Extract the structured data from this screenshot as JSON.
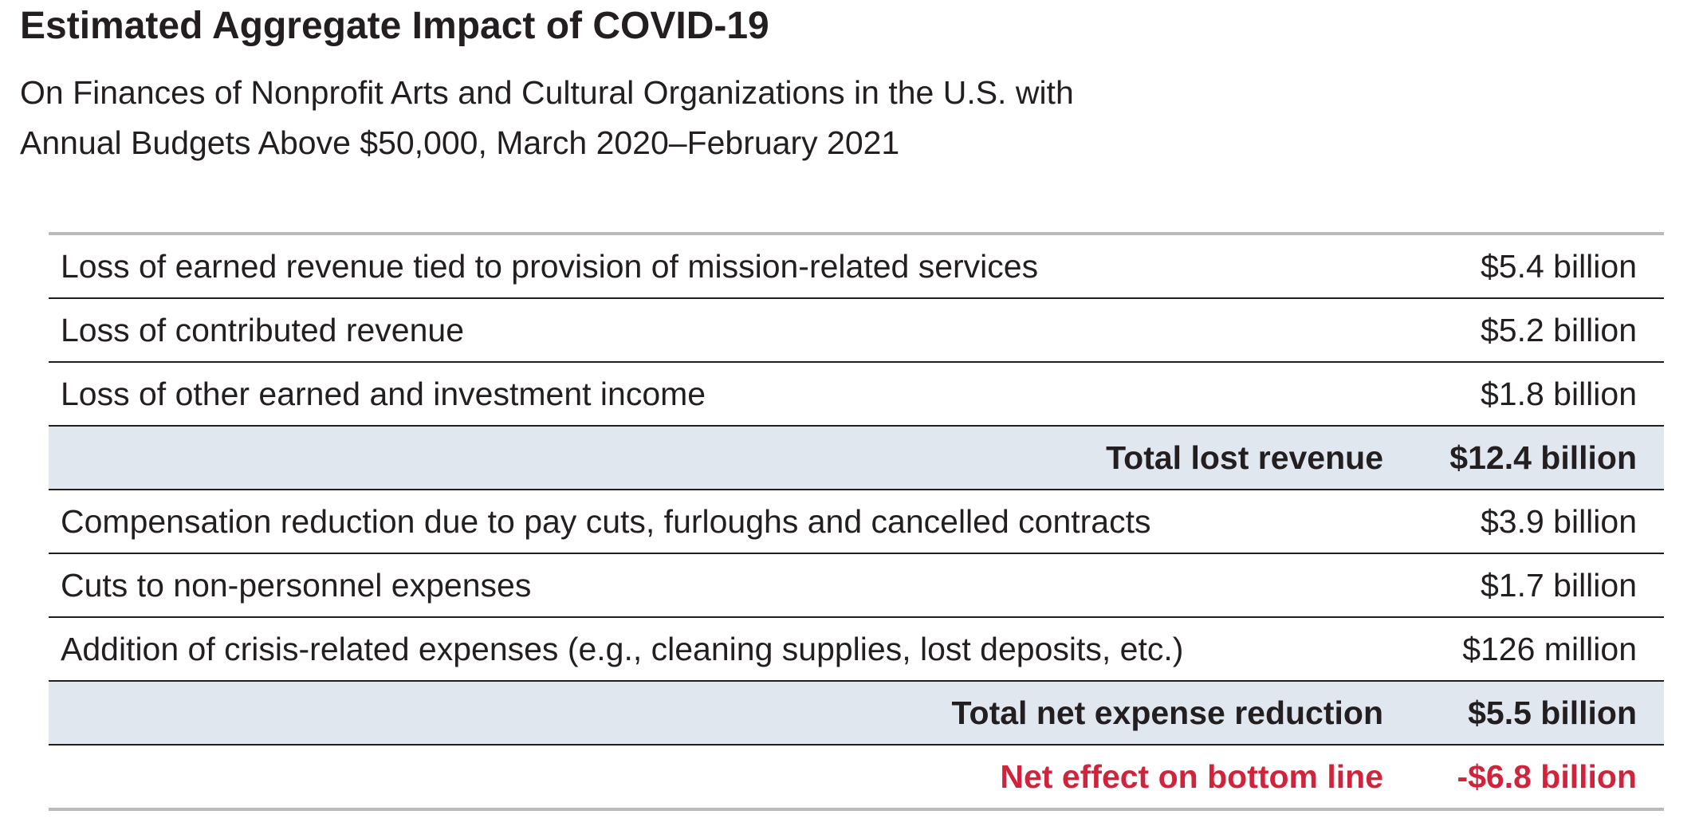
{
  "title": "Estimated Aggregate Impact of COVID-19",
  "subtitle": {
    "line1": "On Finances of Nonprofit Arts and Cultural Organizations in the U.S. with",
    "line2": "Annual Budgets Above $50,000, March 2020–February 2021"
  },
  "rows": [
    {
      "label": "Loss of earned revenue tied to provision of mission-related services",
      "value": "$5.4 billion"
    },
    {
      "label": "Loss of contributed revenue",
      "value": "$5.2 billion"
    },
    {
      "label": "Loss of other earned and investment income",
      "value": "$1.8 billion"
    },
    {
      "label": "Total lost revenue",
      "value": "$12.4 billion"
    },
    {
      "label": "Compensation reduction due to pay cuts, furloughs and cancelled contracts",
      "value": "$3.9 billion"
    },
    {
      "label": "Cuts to non-personnel expenses",
      "value": "$1.7 billion"
    },
    {
      "label": "Addition of crisis-related expenses (e.g., cleaning supplies, lost deposits, etc.)",
      "value": "$126 million"
    },
    {
      "label": "Total net expense reduction",
      "value": "$5.5 billion"
    },
    {
      "label": "Net effect on bottom line",
      "value": "-$6.8 billion"
    }
  ],
  "colors": {
    "text": "#231f20",
    "total_row_background": "#e1e7ef",
    "net_effect": "#d0243d",
    "outer_rule": "#b8babc"
  }
}
